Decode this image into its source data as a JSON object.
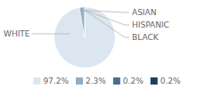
{
  "chart_data": {
    "type": "pie",
    "categories": [
      "WHITE",
      "ASIAN",
      "HISPANIC",
      "BLACK"
    ],
    "values": [
      97.2,
      2.3,
      0.2,
      0.2
    ],
    "value_labels": [
      "97.2%",
      "2.3%",
      "0.2%",
      "0.2%"
    ],
    "colors": [
      "#dce6f0",
      "#8eadc7",
      "#4e6d8c",
      "#1f3d5c"
    ],
    "legend": "bottom"
  }
}
